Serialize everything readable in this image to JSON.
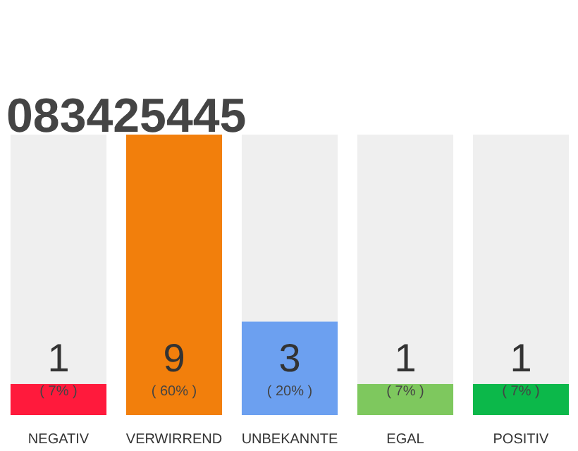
{
  "chart_data": {
    "type": "bar",
    "title": "083425445",
    "categories": [
      "NEGATIV",
      "VERWIRREND",
      "UNBEKANNTE",
      "EGAL",
      "POSITIV"
    ],
    "stacked": true,
    "ylim": [
      0,
      9
    ],
    "tick_labels": "x",
    "grid": false,
    "series": [
      {
        "colors": [
          "#ff1a3c",
          "#f27f0c",
          "#6ca0f0",
          "#7ec85e",
          "#0cb84a"
        ],
        "values": [
          1,
          9,
          3,
          1,
          1
        ],
        "value_labels": [
          "1",
          "9",
          "3",
          "1",
          "1"
        ]
      },
      {
        "color": "#efefef",
        "values": [
          8,
          0,
          6,
          8,
          8
        ]
      }
    ],
    "annotations": [
      {
        "text": "( 7% )",
        "x": "NEGATIV",
        "y": 0
      },
      {
        "text": "( 60% )",
        "x": "VERWIRREND",
        "y": 0
      },
      {
        "text": "( 20% )",
        "x": "UNBEKANNTE",
        "y": 0
      },
      {
        "text": "( 7% )",
        "x": "EGAL",
        "y": 0
      },
      {
        "text": "( 7% )",
        "x": "POSITIV",
        "y": 0
      }
    ]
  }
}
